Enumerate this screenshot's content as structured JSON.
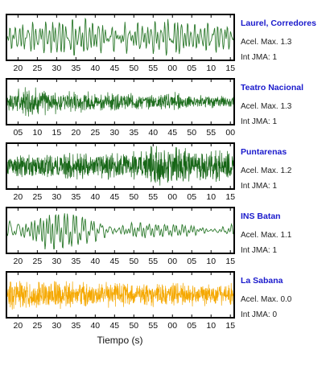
{
  "chart_data": {
    "type": "line",
    "xlabel": "Tiempo (s)",
    "grid": false,
    "colors": {
      "panel_name": "#1a1acc",
      "frame": "#000000"
    },
    "panels": [
      {
        "name": "Laurel, Corredores",
        "acel_label": "Acel. Max. 1.3",
        "jma_label": "Int JMA: 1",
        "acel_max": 1.3,
        "int_jma": 1,
        "color": "#2d7a2d",
        "tick_labels": [
          "20",
          "25",
          "30",
          "35",
          "40",
          "45",
          "50",
          "55",
          "00",
          "05",
          "10",
          "15"
        ],
        "x_range": [
          17.0,
          76.0
        ],
        "tick_start": 20,
        "tick_step": 5,
        "waveform": {
          "style": "smooth",
          "base_freq": 0.95,
          "envelope": [
            0.62,
            0.72,
            0.74,
            0.8,
            0.9,
            0.62,
            0.8,
            0.76,
            0.88,
            0.58,
            0.72,
            0.66
          ],
          "seed": 3
        }
      },
      {
        "name": "Teatro Nacional",
        "acel_label": "Acel. Max. 1.3",
        "jma_label": "Int JMA: 1",
        "acel_max": 1.3,
        "int_jma": 1,
        "color": "#1e6e1e",
        "tick_labels": [
          "05",
          "10",
          "15",
          "20",
          "25",
          "30",
          "35",
          "40",
          "45",
          "50",
          "55",
          "00"
        ],
        "x_range": [
          2.0,
          61.0
        ],
        "tick_start": 5,
        "tick_step": 5,
        "waveform": {
          "style": "noisy",
          "base_freq": 1.2,
          "envelope": [
            0.55,
            0.7,
            0.62,
            0.52,
            0.5,
            0.46,
            0.45,
            0.38,
            0.48,
            0.35,
            0.3,
            0.3
          ],
          "seed": 7
        }
      },
      {
        "name": "Puntarenas",
        "acel_label": "Acel. Max. 1.2",
        "jma_label": "Int JMA: 1",
        "acel_max": 1.2,
        "int_jma": 1,
        "color": "#166616",
        "tick_labels": [
          "20",
          "25",
          "30",
          "35",
          "40",
          "45",
          "50",
          "55",
          "00",
          "05",
          "10",
          "15"
        ],
        "x_range": [
          17.0,
          76.0
        ],
        "tick_start": 20,
        "tick_step": 5,
        "waveform": {
          "style": "dense",
          "base_freq": 1.0,
          "envelope": [
            0.5,
            0.62,
            0.55,
            0.66,
            0.58,
            0.62,
            0.68,
            0.95,
            0.9,
            0.82,
            0.74,
            0.72
          ],
          "seed": 11
        }
      },
      {
        "name": "INS Batan",
        "acel_label": "Acel. Max. 1.1",
        "jma_label": "Int JMA: 1",
        "acel_max": 1.1,
        "int_jma": 1,
        "color": "#2d7a2d",
        "tick_labels": [
          "20",
          "25",
          "30",
          "35",
          "40",
          "45",
          "50",
          "55",
          "00",
          "05",
          "10",
          "15"
        ],
        "x_range": [
          17.0,
          76.0
        ],
        "tick_start": 20,
        "tick_step": 5,
        "waveform": {
          "style": "smooth",
          "base_freq": 0.85,
          "envelope": [
            0.7,
            0.82,
            0.9,
            0.78,
            0.6,
            0.55,
            0.5,
            0.3,
            0.26,
            0.3,
            0.28,
            0.3
          ],
          "seed": 5
        }
      },
      {
        "name": "La Sabana",
        "acel_label": "Acel. Max. 0.0",
        "jma_label": "Int JMA: 0",
        "acel_max": 0.0,
        "int_jma": 0,
        "color": "#f5a800",
        "tick_labels": [
          "20",
          "25",
          "30",
          "35",
          "40",
          "45",
          "50",
          "55",
          "00",
          "05",
          "10",
          "15"
        ],
        "x_range": [
          17.0,
          76.0
        ],
        "tick_start": 20,
        "tick_step": 5,
        "waveform": {
          "style": "noisy",
          "base_freq": 1.6,
          "envelope": [
            0.88,
            0.82,
            0.72,
            0.66,
            0.62,
            0.64,
            0.66,
            0.6,
            0.64,
            0.6,
            0.62,
            0.6
          ],
          "seed": 13
        }
      }
    ]
  }
}
